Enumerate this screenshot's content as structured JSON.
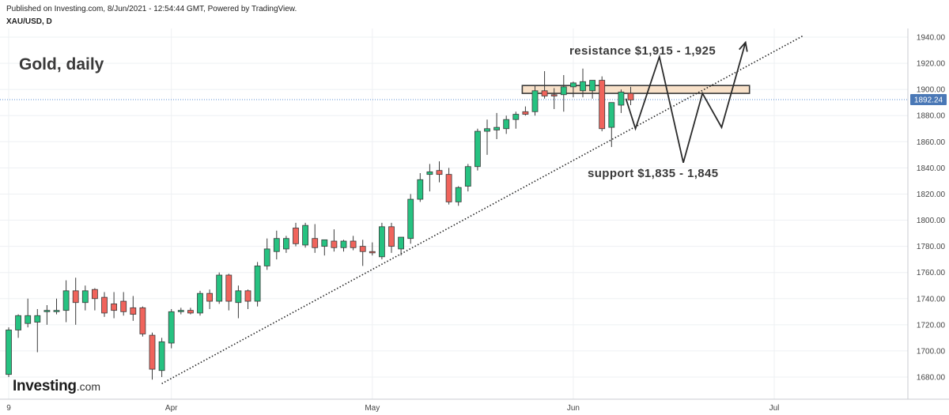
{
  "header": {
    "published": "Published on Investing.com, 8/Jun/2021 - 12:54:44 GMT, Powered by TradingView.",
    "symbol": "XAU/USD, D"
  },
  "brand": {
    "name": "Investing",
    "suffix": ".com"
  },
  "chart_data": {
    "type": "candlestick",
    "title": "Gold, daily",
    "symbol": "XAU/USD",
    "interval": "D",
    "current_price": 1892.24,
    "current_price_label": "1892.24",
    "ylim": [
      1670,
      1945
    ],
    "y_ticks": [
      1680,
      1700,
      1720,
      1740,
      1760,
      1780,
      1800,
      1820,
      1840,
      1860,
      1880,
      1900,
      1920,
      1940
    ],
    "y_tick_labels": [
      "1680.00",
      "1700.00",
      "1720.00",
      "1740.00",
      "1760.00",
      "1780.00",
      "1800.00",
      "1820.00",
      "1840.00",
      "1860.00",
      "1880.00",
      "1900.00",
      "1920.00",
      "1940.00"
    ],
    "x_ticks": [
      {
        "label": "9",
        "index": 0
      },
      {
        "label": "Apr",
        "index": 17
      },
      {
        "label": "May",
        "index": 38
      },
      {
        "label": "Jun",
        "index": 59
      },
      {
        "label": "Jul",
        "index": 80
      }
    ],
    "bull_color": "#26c281",
    "bear_color": "#f0645c",
    "candles": [
      {
        "o": 1682,
        "h": 1718,
        "l": 1680,
        "c": 1716
      },
      {
        "o": 1716,
        "h": 1728,
        "l": 1710,
        "c": 1727
      },
      {
        "o": 1721,
        "h": 1740,
        "l": 1718,
        "c": 1727
      },
      {
        "o": 1722,
        "h": 1732,
        "l": 1699,
        "c": 1727
      },
      {
        "o": 1730,
        "h": 1735,
        "l": 1720,
        "c": 1731
      },
      {
        "o": 1730,
        "h": 1740,
        "l": 1728,
        "c": 1731
      },
      {
        "o": 1731,
        "h": 1754,
        "l": 1722,
        "c": 1746
      },
      {
        "o": 1746,
        "h": 1756,
        "l": 1720,
        "c": 1737
      },
      {
        "o": 1737,
        "h": 1750,
        "l": 1731,
        "c": 1746
      },
      {
        "o": 1747,
        "h": 1748,
        "l": 1731,
        "c": 1740
      },
      {
        "o": 1741,
        "h": 1745,
        "l": 1726,
        "c": 1729
      },
      {
        "o": 1736,
        "h": 1745,
        "l": 1725,
        "c": 1731
      },
      {
        "o": 1738,
        "h": 1745,
        "l": 1727,
        "c": 1730
      },
      {
        "o": 1733,
        "h": 1742,
        "l": 1723,
        "c": 1728
      },
      {
        "o": 1733,
        "h": 1734,
        "l": 1711,
        "c": 1713
      },
      {
        "o": 1712,
        "h": 1714,
        "l": 1678,
        "c": 1686
      },
      {
        "o": 1685,
        "h": 1710,
        "l": 1680,
        "c": 1707
      },
      {
        "o": 1706,
        "h": 1732,
        "l": 1702,
        "c": 1730
      },
      {
        "o": 1730,
        "h": 1733,
        "l": 1728,
        "c": 1731
      },
      {
        "o": 1731,
        "h": 1733,
        "l": 1728,
        "c": 1729
      },
      {
        "o": 1729,
        "h": 1746,
        "l": 1727,
        "c": 1744
      },
      {
        "o": 1744,
        "h": 1747,
        "l": 1732,
        "c": 1738
      },
      {
        "o": 1738,
        "h": 1760,
        "l": 1736,
        "c": 1758
      },
      {
        "o": 1758,
        "h": 1759,
        "l": 1731,
        "c": 1738
      },
      {
        "o": 1737,
        "h": 1750,
        "l": 1725,
        "c": 1746
      },
      {
        "o": 1746,
        "h": 1747,
        "l": 1732,
        "c": 1738
      },
      {
        "o": 1738,
        "h": 1768,
        "l": 1734,
        "c": 1765
      },
      {
        "o": 1765,
        "h": 1786,
        "l": 1762,
        "c": 1778
      },
      {
        "o": 1776,
        "h": 1792,
        "l": 1770,
        "c": 1786
      },
      {
        "o": 1778,
        "h": 1788,
        "l": 1775,
        "c": 1786
      },
      {
        "o": 1794,
        "h": 1798,
        "l": 1780,
        "c": 1782
      },
      {
        "o": 1781,
        "h": 1798,
        "l": 1779,
        "c": 1796
      },
      {
        "o": 1786,
        "h": 1797,
        "l": 1775,
        "c": 1779
      },
      {
        "o": 1780,
        "h": 1785,
        "l": 1773,
        "c": 1785
      },
      {
        "o": 1784,
        "h": 1793,
        "l": 1776,
        "c": 1779
      },
      {
        "o": 1779,
        "h": 1785,
        "l": 1776,
        "c": 1784
      },
      {
        "o": 1784,
        "h": 1788,
        "l": 1777,
        "c": 1779
      },
      {
        "o": 1780,
        "h": 1785,
        "l": 1765,
        "c": 1776
      },
      {
        "o": 1776,
        "h": 1783,
        "l": 1773,
        "c": 1775
      },
      {
        "o": 1772,
        "h": 1798,
        "l": 1770,
        "c": 1795
      },
      {
        "o": 1795,
        "h": 1798,
        "l": 1775,
        "c": 1780
      },
      {
        "o": 1778,
        "h": 1786,
        "l": 1773,
        "c": 1787
      },
      {
        "o": 1786,
        "h": 1820,
        "l": 1782,
        "c": 1816
      },
      {
        "o": 1816,
        "h": 1836,
        "l": 1814,
        "c": 1831
      },
      {
        "o": 1835,
        "h": 1843,
        "l": 1822,
        "c": 1837
      },
      {
        "o": 1838,
        "h": 1845,
        "l": 1829,
        "c": 1835
      },
      {
        "o": 1835,
        "h": 1840,
        "l": 1812,
        "c": 1814
      },
      {
        "o": 1814,
        "h": 1826,
        "l": 1811,
        "c": 1825
      },
      {
        "o": 1826,
        "h": 1843,
        "l": 1822,
        "c": 1841
      },
      {
        "o": 1841,
        "h": 1870,
        "l": 1838,
        "c": 1868
      },
      {
        "o": 1868,
        "h": 1877,
        "l": 1850,
        "c": 1870
      },
      {
        "o": 1869,
        "h": 1882,
        "l": 1862,
        "c": 1871
      },
      {
        "o": 1870,
        "h": 1880,
        "l": 1866,
        "c": 1877
      },
      {
        "o": 1877,
        "h": 1883,
        "l": 1870,
        "c": 1881
      },
      {
        "o": 1883,
        "h": 1887,
        "l": 1880,
        "c": 1881
      },
      {
        "o": 1883,
        "h": 1903,
        "l": 1880,
        "c": 1899
      },
      {
        "o": 1899,
        "h": 1914,
        "l": 1893,
        "c": 1895
      },
      {
        "o": 1896,
        "h": 1901,
        "l": 1885,
        "c": 1895
      },
      {
        "o": 1896,
        "h": 1911,
        "l": 1883,
        "c": 1902
      },
      {
        "o": 1902,
        "h": 1906,
        "l": 1894,
        "c": 1905
      },
      {
        "o": 1899,
        "h": 1916,
        "l": 1894,
        "c": 1906
      },
      {
        "o": 1899,
        "h": 1907,
        "l": 1893,
        "c": 1907
      },
      {
        "o": 1907,
        "h": 1910,
        "l": 1868,
        "c": 1870
      },
      {
        "o": 1871,
        "h": 1890,
        "l": 1856,
        "c": 1890
      },
      {
        "o": 1888,
        "h": 1900,
        "l": 1882,
        "c": 1898
      },
      {
        "o": 1897,
        "h": 1902,
        "l": 1888,
        "c": 1892
      }
    ],
    "trendline": {
      "from": {
        "index": 16,
        "price": 1675
      },
      "to": {
        "index": 83,
        "price": 1941
      },
      "style": "dotted"
    },
    "resistance_zone": {
      "from_index": 54,
      "to_index": 77,
      "low": 1897,
      "high": 1903
    },
    "projection_path": [
      {
        "index": 64.5,
        "price": 1893
      },
      {
        "index": 65.5,
        "price": 1870
      },
      {
        "index": 68,
        "price": 1925
      },
      {
        "index": 70.5,
        "price": 1844
      },
      {
        "index": 72.5,
        "price": 1897
      },
      {
        "index": 74.5,
        "price": 1871
      },
      {
        "index": 77,
        "price": 1936
      }
    ],
    "annotations": [
      {
        "text": "resistance $1,915 - 1,925"
      },
      {
        "text": "support $1,835 - 1,845"
      }
    ]
  }
}
